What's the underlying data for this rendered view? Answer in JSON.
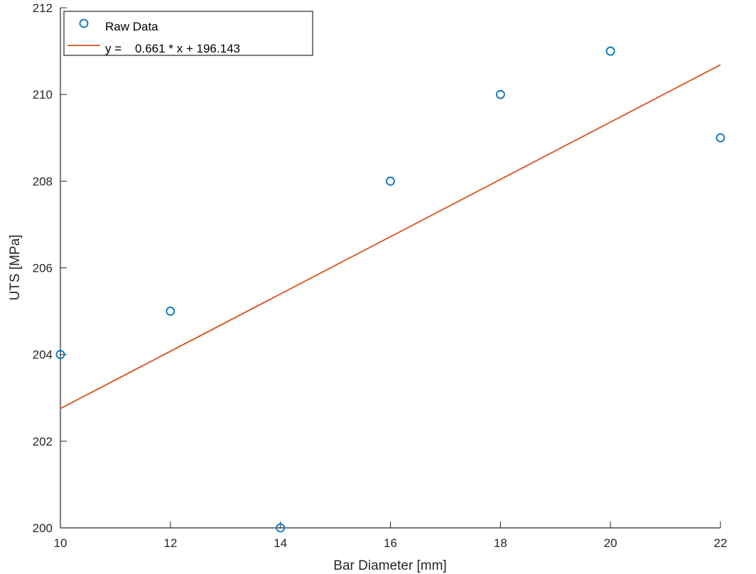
{
  "chart_data": {
    "type": "scatter",
    "title": "",
    "xlabel": "Bar Diameter [mm]",
    "ylabel": "UTS [MPa]",
    "xlim": [
      10,
      22
    ],
    "ylim": [
      200,
      212
    ],
    "xticks": [
      10,
      12,
      14,
      16,
      18,
      20,
      22
    ],
    "yticks": [
      200,
      202,
      204,
      206,
      208,
      210,
      212
    ],
    "grid": false,
    "legend_position": "top-left",
    "series": [
      {
        "name": "Raw Data",
        "kind": "scatter",
        "marker": "circle",
        "color": "#0072BD",
        "x": [
          10,
          12,
          14,
          16,
          18,
          20,
          22
        ],
        "y": [
          204,
          205,
          200,
          208,
          210,
          211,
          209
        ]
      },
      {
        "name": "y =    0.661 * x + 196.143",
        "kind": "line",
        "color": "#D95319",
        "slope": 0.661,
        "intercept": 196.143,
        "x": [
          10,
          22
        ],
        "y": [
          202.753,
          210.685
        ]
      }
    ]
  }
}
